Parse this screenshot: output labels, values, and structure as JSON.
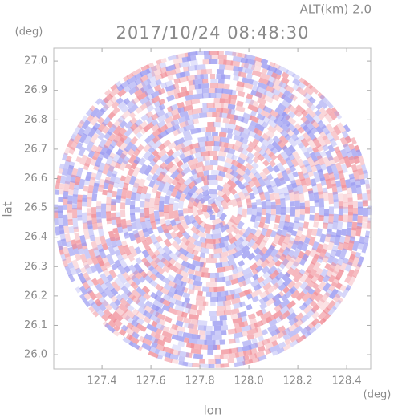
{
  "chart_data": {
    "type": "radar-ppi",
    "title": "2017/10/24 08:48:30",
    "subtitle": "ALT(km) 2.0",
    "x_label": "lon",
    "y_label": "lat",
    "x_unit": "(deg)",
    "y_unit": "(deg)",
    "xlim": [
      127.203,
      128.498
    ],
    "ylim": [
      25.951,
      27.044
    ],
    "xticks": [
      127.4,
      127.6,
      127.8,
      {
        "value": 128.0,
        "label": "128.0"
      },
      128.2,
      128.4
    ],
    "yticks": [
      {
        "value": 26.0,
        "label": "26.0"
      },
      26.1,
      26.2,
      26.3,
      26.4,
      26.5,
      26.6,
      26.7,
      26.8,
      26.9,
      {
        "value": 27.0,
        "label": "27.0"
      }
    ]
  }
}
